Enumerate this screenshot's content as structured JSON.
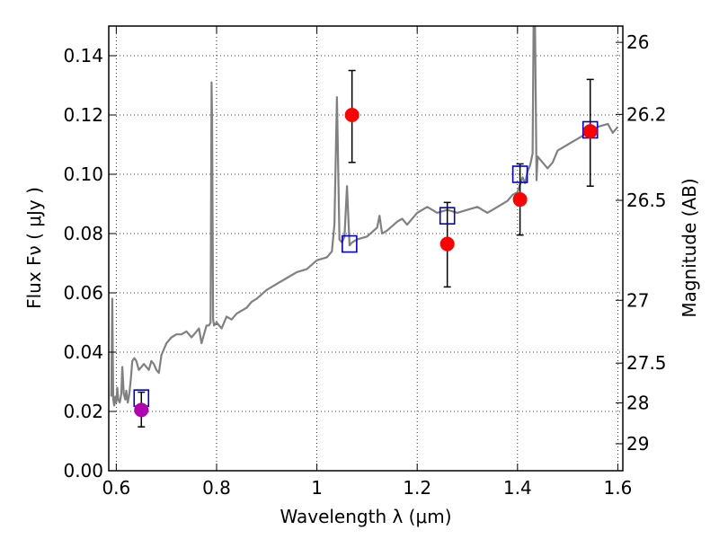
{
  "chart_data": {
    "type": "scatter",
    "xlabel": "Wavelength  λ (μm)",
    "ylabel_left": "Flux  Fν  ( μJy )",
    "ylabel_right": "Magnitude (AB)",
    "xlim": [
      0.585,
      1.61
    ],
    "ylim": [
      0.0,
      0.15
    ],
    "grid": true,
    "x_ticks": [
      {
        "value": 0.6,
        "label": "0.6"
      },
      {
        "value": 0.8,
        "label": "0.8"
      },
      {
        "value": 1.0,
        "label": "1"
      },
      {
        "value": 1.2,
        "label": "1.2"
      },
      {
        "value": 1.4,
        "label": "1.4"
      },
      {
        "value": 1.6,
        "label": "1.6"
      }
    ],
    "y_ticks": [
      {
        "value": 0.0,
        "label": "0.00"
      },
      {
        "value": 0.02,
        "label": "0.02"
      },
      {
        "value": 0.04,
        "label": "0.04"
      },
      {
        "value": 0.06,
        "label": "0.06"
      },
      {
        "value": 0.08,
        "label": "0.08"
      },
      {
        "value": 0.1,
        "label": "0.10"
      },
      {
        "value": 0.12,
        "label": "0.12"
      },
      {
        "value": 0.14,
        "label": "0.14"
      }
    ],
    "right_ticks": [
      {
        "flux": 0.1445,
        "label": "26"
      },
      {
        "flux": 0.1202,
        "label": "26.2"
      },
      {
        "flux": 0.0912,
        "label": "26.5"
      },
      {
        "flux": 0.0575,
        "label": "27"
      },
      {
        "flux": 0.0363,
        "label": "27.5"
      },
      {
        "flux": 0.0229,
        "label": "28"
      },
      {
        "flux": 0.0091,
        "label": "29"
      }
    ],
    "series": [
      {
        "kind": "line",
        "color": "#808080",
        "x": [
          0.59,
          0.592,
          0.594,
          0.596,
          0.598,
          0.6,
          0.602,
          0.604,
          0.607,
          0.61,
          0.612,
          0.615,
          0.618,
          0.62,
          0.623,
          0.626,
          0.629,
          0.632,
          0.636,
          0.64,
          0.645,
          0.65,
          0.655,
          0.66,
          0.665,
          0.67,
          0.675,
          0.68,
          0.685,
          0.69,
          0.7,
          0.71,
          0.72,
          0.73,
          0.74,
          0.75,
          0.76,
          0.765,
          0.77,
          0.775,
          0.78,
          0.785,
          0.788,
          0.79,
          0.791,
          0.793,
          0.795,
          0.8,
          0.81,
          0.82,
          0.83,
          0.84,
          0.85,
          0.86,
          0.87,
          0.88,
          0.9,
          0.92,
          0.94,
          0.96,
          0.98,
          1.0,
          1.02,
          1.03,
          1.035,
          1.04,
          1.045,
          1.05,
          1.055,
          1.06,
          1.065,
          1.07,
          1.08,
          1.1,
          1.12,
          1.125,
          1.13,
          1.14,
          1.16,
          1.17,
          1.18,
          1.2,
          1.22,
          1.24,
          1.26,
          1.28,
          1.3,
          1.32,
          1.34,
          1.36,
          1.38,
          1.39,
          1.4,
          1.41,
          1.415,
          1.42,
          1.425,
          1.43,
          1.432,
          1.435,
          1.438,
          1.44,
          1.45,
          1.46,
          1.47,
          1.48,
          1.5,
          1.52,
          1.54,
          1.56,
          1.58,
          1.59,
          1.6
        ],
        "y": [
          0.025,
          0.058,
          0.024,
          0.022,
          0.025,
          0.023,
          0.028,
          0.024,
          0.023,
          0.026,
          0.035,
          0.026,
          0.024,
          0.027,
          0.023,
          0.026,
          0.031,
          0.037,
          0.038,
          0.037,
          0.034,
          0.035,
          0.036,
          0.035,
          0.034,
          0.037,
          0.036,
          0.034,
          0.033,
          0.039,
          0.043,
          0.045,
          0.046,
          0.046,
          0.047,
          0.045,
          0.047,
          0.048,
          0.043,
          0.046,
          0.049,
          0.049,
          0.05,
          0.131,
          0.118,
          0.051,
          0.049,
          0.05,
          0.048,
          0.052,
          0.051,
          0.053,
          0.054,
          0.055,
          0.057,
          0.058,
          0.061,
          0.063,
          0.065,
          0.067,
          0.068,
          0.071,
          0.072,
          0.074,
          0.083,
          0.126,
          0.078,
          0.077,
          0.079,
          0.096,
          0.076,
          0.077,
          0.078,
          0.079,
          0.082,
          0.086,
          0.08,
          0.081,
          0.084,
          0.085,
          0.083,
          0.087,
          0.089,
          0.087,
          0.088,
          0.087,
          0.088,
          0.089,
          0.087,
          0.089,
          0.091,
          0.093,
          0.094,
          0.099,
          0.097,
          0.101,
          0.103,
          0.107,
          0.15,
          0.15,
          0.098,
          0.106,
          0.104,
          0.102,
          0.104,
          0.108,
          0.11,
          0.112,
          0.114,
          0.116,
          0.117,
          0.114,
          0.116
        ]
      },
      {
        "kind": "model-boxes",
        "color": "#0000cc",
        "x": [
          0.65,
          1.065,
          1.26,
          1.405,
          1.545
        ],
        "y": [
          0.0245,
          0.0765,
          0.086,
          0.1,
          0.115
        ]
      },
      {
        "kind": "measurements",
        "color": "#ff0000",
        "x": [
          1.07,
          1.26,
          1.405,
          1.545
        ],
        "y": [
          0.12,
          0.0765,
          0.0915,
          0.1145
        ],
        "yerr_low": [
          0.104,
          0.062,
          0.0795,
          0.096
        ],
        "yerr_high": [
          0.135,
          0.0905,
          0.1035,
          0.132
        ]
      },
      {
        "kind": "measurements",
        "color": "#b000b0",
        "x": [
          0.65
        ],
        "y": [
          0.0205
        ],
        "yerr_low": [
          0.0148
        ],
        "yerr_high": [
          0.0265
        ]
      }
    ]
  }
}
